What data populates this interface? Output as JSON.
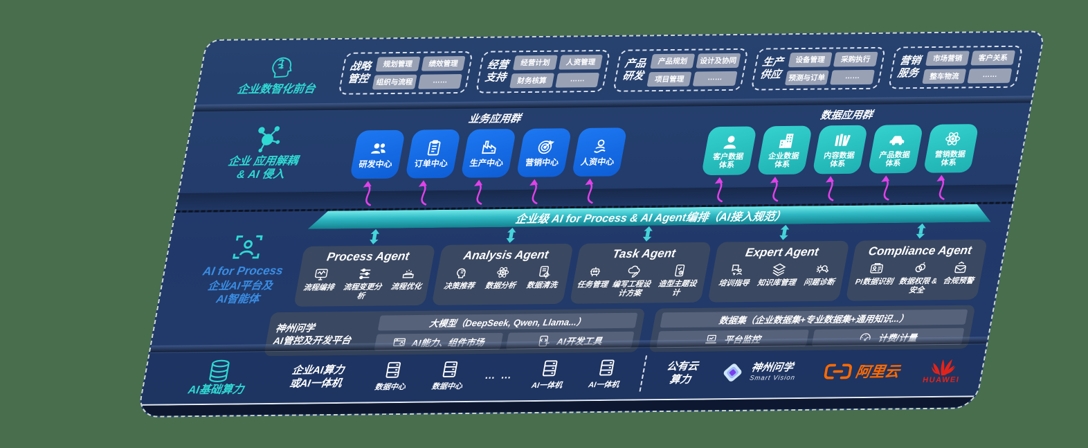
{
  "colors": {
    "background_green": "#486e4e",
    "panel_navy": "#21396a",
    "accent_teal": "#2fd9d3",
    "app_box_blue": "#1368e2",
    "data_box_teal": "#2cc8c6",
    "flow_arrow_magenta": "#e241e8",
    "banner_teal": "#2fb9c4",
    "card_grey": "#3b4861",
    "alibaba_orange": "#ff6a00",
    "huawei_red": "#e2231a"
  },
  "front_layer": {
    "icon": "head-brain-icon",
    "label": "企业数智化前台",
    "groups": [
      {
        "title": "战略\n管控",
        "chips": [
          "规划管理",
          "绩效管理",
          "组织与流程",
          "……"
        ]
      },
      {
        "title": "经营\n支持",
        "chips": [
          "经营计划",
          "人资管理",
          "财务核算",
          "……"
        ]
      },
      {
        "title": "产品\n研发",
        "chips": [
          "产品规划",
          "设计及协同",
          "项目管理",
          "……"
        ]
      },
      {
        "title": "生产\n供应",
        "chips": [
          "设备管理",
          "采购执行",
          "预测与订单",
          "……"
        ]
      },
      {
        "title": "营销\n服务",
        "chips": [
          "市场营销",
          "客户关系",
          "整车物流",
          "……"
        ]
      }
    ]
  },
  "app_layer": {
    "icon": "molecule-icon",
    "label": "企业 应用解耦\n& AI 侵入",
    "business_title": "业务应用群",
    "data_title": "数据应用群",
    "business_apps": [
      {
        "label": "研发中心",
        "icon": "team-icon"
      },
      {
        "label": "订单中心",
        "icon": "clipboard-icon"
      },
      {
        "label": "生产中心",
        "icon": "factory-icon"
      },
      {
        "label": "营销中心",
        "icon": "target-icon"
      },
      {
        "label": "人资中心",
        "icon": "hr-people-icon"
      }
    ],
    "data_apps": [
      {
        "label": "客户数据\n体系",
        "icon": "person-icon"
      },
      {
        "label": "企业数据\n体系",
        "icon": "building-icon"
      },
      {
        "label": "内容数据\n体系",
        "icon": "books-icon"
      },
      {
        "label": "产品数据\n体系",
        "icon": "car-icon"
      },
      {
        "label": "营销数据\n体系",
        "icon": "atom-icon"
      }
    ]
  },
  "banner": {
    "text": "企业级 AI for Process & AI Agent编排（AI接入规范）"
  },
  "agent_layer": {
    "icon": "person-scan-icon",
    "title": "AI for Process",
    "subtitle": "企业AI平台及\nAI智能体",
    "agents": [
      {
        "title": "Process Agent",
        "items": [
          {
            "label": "流程编排",
            "icon": "monitor-wave-icon"
          },
          {
            "label": "流程变更分析",
            "icon": "sliders-icon"
          },
          {
            "label": "流程优化",
            "icon": "stack-sparkle-icon"
          }
        ]
      },
      {
        "title": "Analysis Agent",
        "items": [
          {
            "label": "决策推荐",
            "icon": "head-chat-icon"
          },
          {
            "label": "数据分析",
            "icon": "atom-icon"
          },
          {
            "label": "数据清洗",
            "icon": "doc-gear-icon"
          }
        ]
      },
      {
        "title": "Task Agent",
        "items": [
          {
            "label": "任务管理",
            "icon": "robot-icon"
          },
          {
            "label": "编写工程设计方案",
            "icon": "cloud-pen-icon"
          },
          {
            "label": "造型主题设计",
            "icon": "tablet-check-icon"
          }
        ]
      },
      {
        "title": "Expert Agent",
        "items": [
          {
            "label": "培训指导",
            "icon": "teacher-icon"
          },
          {
            "label": "知识库管理",
            "icon": "layers-icon"
          },
          {
            "label": "问题诊断",
            "icon": "gear-wrench-icon"
          }
        ]
      },
      {
        "title": "Compliance Agent",
        "items": [
          {
            "label": "PI数据识别",
            "icon": "id-card-icon"
          },
          {
            "label": "数据权限 &\n安全",
            "icon": "rings-icon"
          },
          {
            "label": "合规预警",
            "icon": "mail-alert-icon"
          }
        ]
      }
    ]
  },
  "platform_layer": {
    "label": "神州问学\nAI管控及开发平台",
    "model_bar": "大模型（DeepSeek, Qwen, Llama...）",
    "left_tools": [
      {
        "label": "AI能力、组件市场",
        "icon": "window-gear-icon"
      },
      {
        "label": "AI开发工具",
        "icon": "code-doc-icon"
      }
    ],
    "dataset_bar": "数据集（企业数据集+专业数据集+通用知识...）",
    "right_tools": [
      {
        "label": "平台监控",
        "icon": "laptop-chart-icon"
      },
      {
        "label": "计费/计量",
        "icon": "gauge-icon"
      }
    ]
  },
  "compute_layer": {
    "icon": "database-icon",
    "label": "AI基础算力",
    "machines_title": "企业AI算力\n或AI一体机",
    "servers": [
      {
        "label": "数据中心",
        "icon": "server-icon"
      },
      {
        "label": "数据中心",
        "icon": "server-icon"
      },
      {
        "label": "AI一体机",
        "icon": "server-icon"
      },
      {
        "label": "AI一体机",
        "icon": "server-icon"
      }
    ],
    "ellipsis": "… …",
    "public_cloud": "公有云\n算力",
    "vendor_logo": {
      "name": "神州问学",
      "sub": "Smart Vision",
      "icon": "sv-diamond-icon"
    },
    "alibaba_logo": {
      "name": "阿里云",
      "icon": "ali-brackets-icon"
    },
    "huawei_logo": {
      "name": "HUAWEI",
      "icon": "huawei-flower-icon"
    }
  }
}
